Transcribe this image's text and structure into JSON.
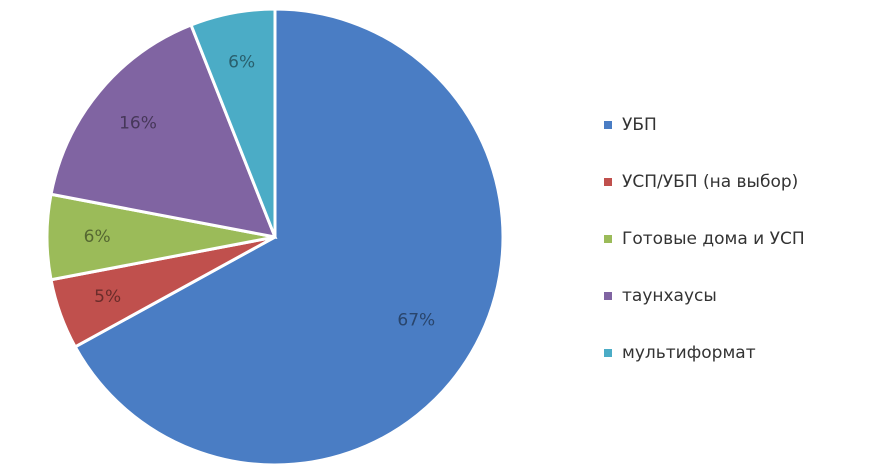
{
  "chart_data": {
    "type": "pie",
    "categories": [
      "УБП",
      "УСП/УБП (на выбор)",
      "Готовые дома и УСП",
      "таунхаусы",
      "мультиформат"
    ],
    "values": [
      67,
      5,
      6,
      16,
      6
    ],
    "value_labels": [
      "67%",
      "5%",
      "6%",
      "16%",
      "6%"
    ],
    "colors": [
      "#4a7dc4",
      "#c0504d",
      "#9bbb59",
      "#8064a2",
      "#4bacc6"
    ],
    "legend": "right"
  }
}
